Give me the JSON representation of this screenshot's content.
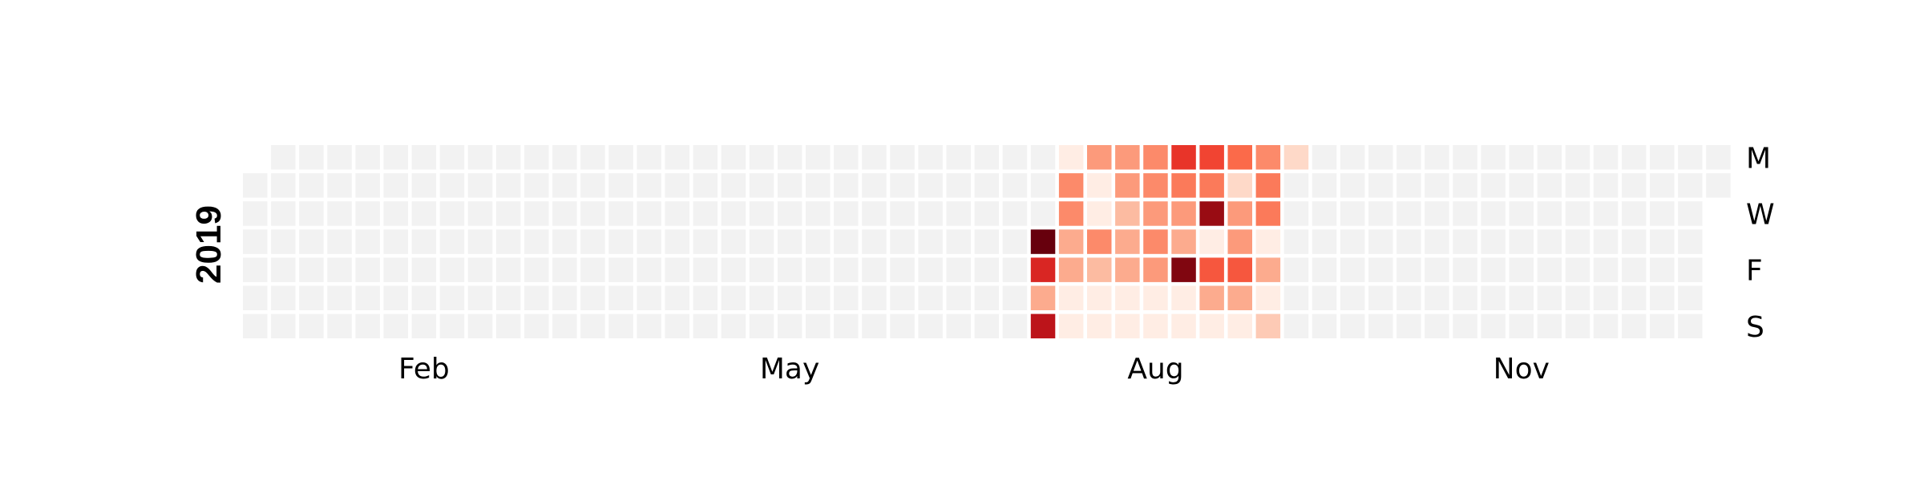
{
  "chart_data": {
    "type": "heatmap",
    "title": "",
    "year_label": "2019",
    "year": 2019,
    "colormap": "Reds",
    "value_range": [
      0,
      1
    ],
    "empty_color": "#f2f2f2",
    "month_ticks": [
      {
        "label": "Feb",
        "week": 6
      },
      {
        "label": "May",
        "week": 19
      },
      {
        "label": "Aug",
        "week": 32
      },
      {
        "label": "Nov",
        "week": 45
      }
    ],
    "day_ticks": [
      {
        "label": "M",
        "day": 0
      },
      {
        "label": "W",
        "day": 2
      },
      {
        "label": "F",
        "day": 4
      },
      {
        "label": "S",
        "day": 6
      }
    ],
    "data_start_week": 28,
    "data": [
      {
        "week": 28,
        "values": [
          null,
          null,
          null,
          1.0,
          0.7,
          0.3,
          0.8
        ]
      },
      {
        "week": 29,
        "values": [
          0.05,
          0.4,
          0.4,
          0.3,
          0.3,
          0.05,
          0.05
        ]
      },
      {
        "week": 30,
        "values": [
          0.35,
          0.05,
          0.05,
          0.4,
          0.25,
          0.05,
          0.05
        ]
      },
      {
        "week": 31,
        "values": [
          0.35,
          0.35,
          0.25,
          0.3,
          0.3,
          0.05,
          0.05
        ]
      },
      {
        "week": 32,
        "values": [
          0.4,
          0.4,
          0.35,
          0.4,
          0.35,
          0.05,
          0.05
        ]
      },
      {
        "week": 33,
        "values": [
          0.65,
          0.45,
          0.35,
          0.3,
          0.95,
          0.05,
          0.05
        ]
      },
      {
        "week": 34,
        "values": [
          0.6,
          0.45,
          0.9,
          0.05,
          0.55,
          0.3,
          0.05
        ]
      },
      {
        "week": 35,
        "values": [
          0.5,
          0.15,
          0.35,
          0.35,
          0.55,
          0.3,
          0.05
        ]
      },
      {
        "week": 36,
        "values": [
          0.4,
          0.45,
          0.45,
          0.05,
          0.3,
          0.05,
          0.2
        ]
      },
      {
        "week": 37,
        "values": [
          0.15,
          null,
          null,
          null,
          null,
          null,
          null
        ]
      }
    ]
  }
}
